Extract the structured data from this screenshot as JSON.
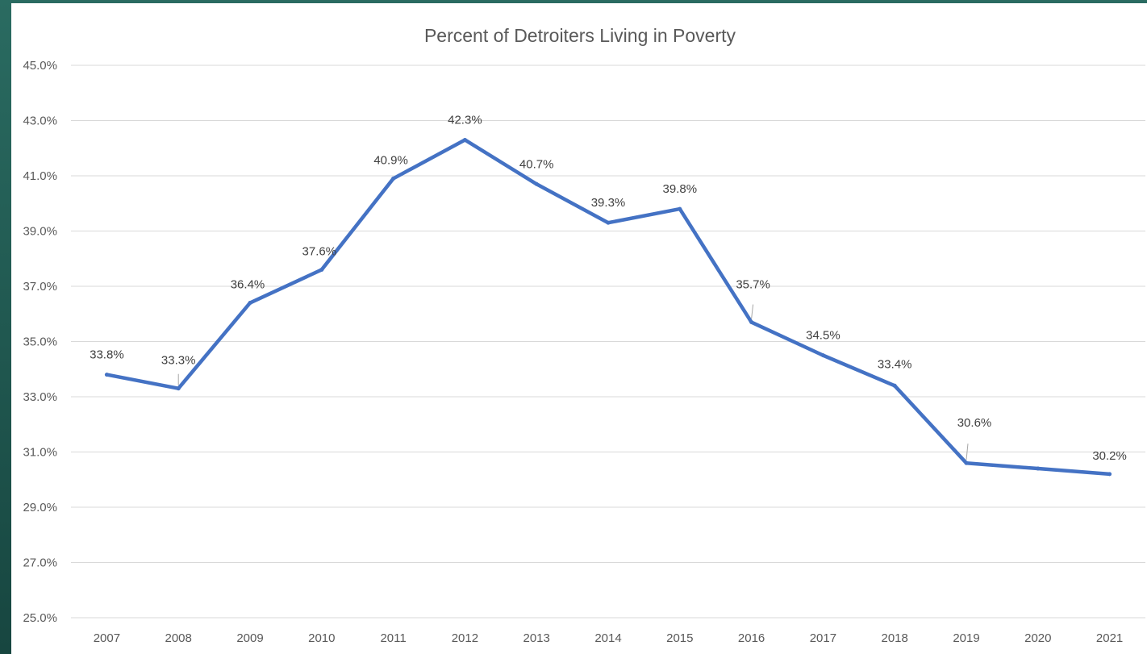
{
  "chart_data": {
    "type": "line",
    "title": "Percent of Detroiters Living in Poverty",
    "xlabel": "",
    "ylabel": "",
    "categories": [
      "2007",
      "2008",
      "2009",
      "2010",
      "2011",
      "2012",
      "2013",
      "2014",
      "2015",
      "2016",
      "2017",
      "2018",
      "2019",
      "2020",
      "2021"
    ],
    "series": [
      {
        "values": [
          33.8,
          33.3,
          36.4,
          37.6,
          40.9,
          42.3,
          40.7,
          39.3,
          39.8,
          35.7,
          34.5,
          33.4,
          30.6,
          30.4,
          30.2
        ],
        "data_labels": [
          "33.8%",
          "33.3%",
          "36.4%",
          "37.6%",
          "40.9%",
          "42.3%",
          "40.7%",
          "39.3%",
          "39.8%",
          "35.7%",
          "34.5%",
          "33.4%",
          "30.6%",
          "",
          "30.2%"
        ]
      }
    ],
    "ylim": [
      25,
      45
    ],
    "yticks": [
      "25.0%",
      "27.0%",
      "29.0%",
      "31.0%",
      "33.0%",
      "35.0%",
      "37.0%",
      "39.0%",
      "41.0%",
      "43.0%",
      "45.0%"
    ],
    "grid": true,
    "legend": "none",
    "colors": {
      "line": "#4472C4",
      "grid": "#D9D9D9",
      "text": "#595959"
    }
  }
}
